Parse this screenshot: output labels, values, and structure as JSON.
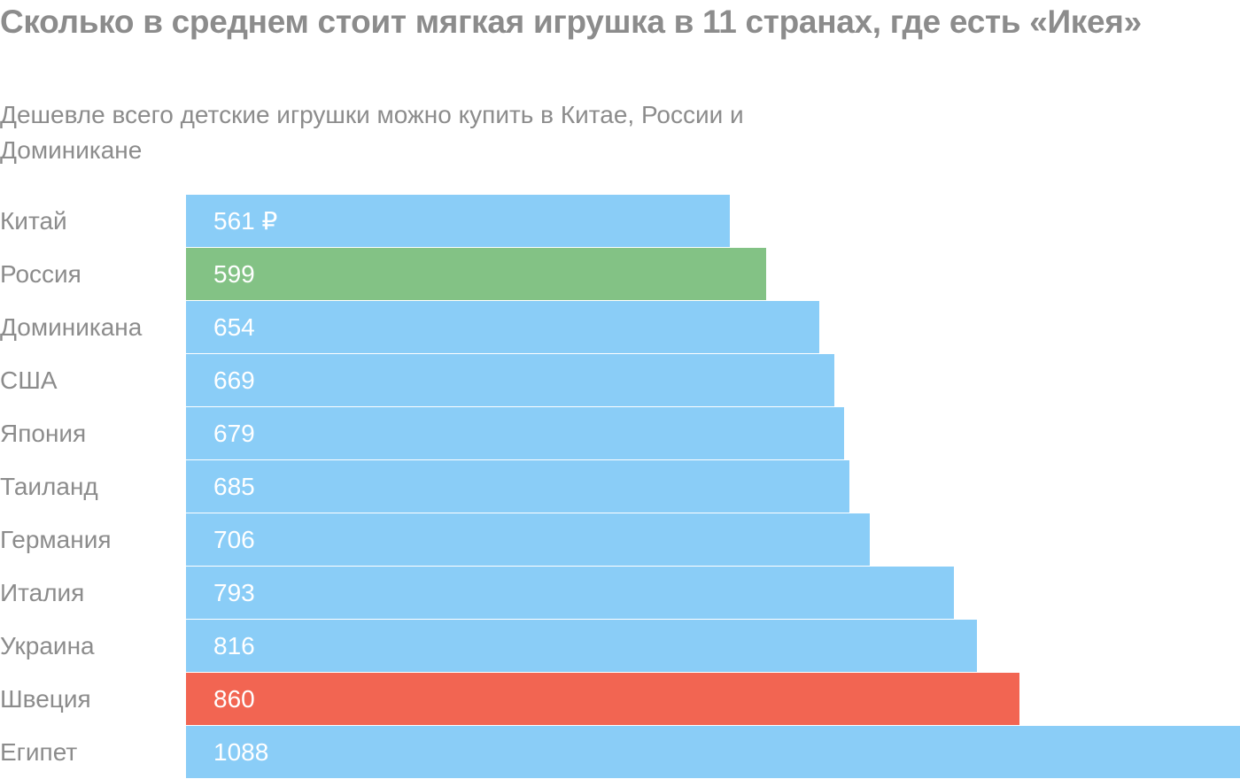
{
  "title": "Сколько в среднем стоит мягкая игрушка в 11 странах, где есть «Икея»",
  "subtitle": "Дешевле всего детские игрушки можно купить в Китае, России и Доминикане",
  "colors": {
    "default": "#8acdf7",
    "russia": "#83c285",
    "sweden": "#f26552"
  },
  "chart_data": {
    "type": "bar",
    "orientation": "horizontal",
    "title": "Сколько в среднем стоит мягкая игрушка в 11 странах, где есть «Икея»",
    "subtitle": "Дешевле всего детские игрушки можно купить в Китае, России и Доминикане",
    "xlim": [
      0,
      1088
    ],
    "grid": false,
    "categories": [
      "Китай",
      "Россия",
      "Доминикана",
      "США",
      "Япония",
      "Таиланд",
      "Германия",
      "Италия",
      "Украина",
      "Швеция",
      "Египет"
    ],
    "values": [
      561,
      599,
      654,
      669,
      679,
      685,
      706,
      793,
      816,
      860,
      1088
    ],
    "value_labels": [
      "561 ₽",
      "599",
      "654",
      "669",
      "679",
      "685",
      "706",
      "793",
      "816",
      "860",
      "1088"
    ],
    "bar_colors": [
      "#8acdf7",
      "#83c285",
      "#8acdf7",
      "#8acdf7",
      "#8acdf7",
      "#8acdf7",
      "#8acdf7",
      "#8acdf7",
      "#8acdf7",
      "#f26552",
      "#8acdf7"
    ]
  }
}
